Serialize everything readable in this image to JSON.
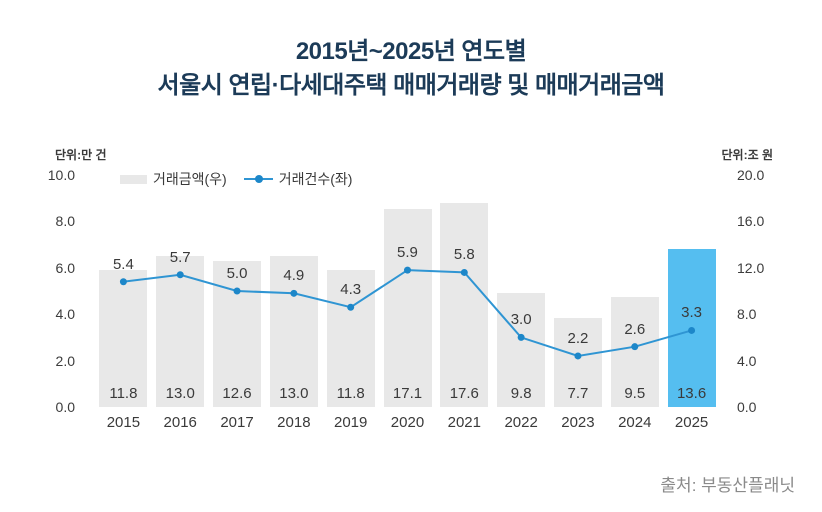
{
  "title": {
    "line1": "2015년~2025년 연도별",
    "line2": "서울시 연립·다세대주택 매매거래량 및 매매거래금액"
  },
  "units": {
    "left": "단위:만 건",
    "right": "단위:조 원"
  },
  "legend": [
    {
      "label": "거래금액(우)",
      "marker": "bar-swatch"
    },
    {
      "label": "거래건수(좌)",
      "marker": "line-marker"
    }
  ],
  "source": "출처: 부동산플래닛",
  "chart_data": {
    "type": "bar+line combo",
    "categories": [
      "2015",
      "2016",
      "2017",
      "2018",
      "2019",
      "2020",
      "2021",
      "2022",
      "2023",
      "2024",
      "2025"
    ],
    "series": [
      {
        "name": "거래금액(우)",
        "type": "bar",
        "axis": "right",
        "values": [
          11.8,
          13.0,
          12.6,
          13.0,
          11.8,
          17.1,
          17.6,
          9.8,
          7.7,
          9.5,
          13.6
        ]
      },
      {
        "name": "거래건수(좌)",
        "type": "line",
        "axis": "left",
        "values": [
          5.4,
          5.7,
          5.0,
          4.9,
          4.3,
          5.9,
          5.8,
          3.0,
          2.2,
          2.6,
          3.3
        ]
      }
    ],
    "left_axis": {
      "label": "단위:만 건",
      "ticks": [
        "10.0",
        "8.0",
        "6.0",
        "4.0",
        "2.0",
        "0.0"
      ],
      "range": [
        0,
        10
      ]
    },
    "right_axis": {
      "label": "단위:조 원",
      "ticks": [
        "20.0",
        "16.0",
        "12.0",
        "8.0",
        "4.0",
        "0.0"
      ],
      "range": [
        0,
        20
      ]
    },
    "highlight_index": 10,
    "grid": false,
    "legend_position": "top-left",
    "colors": {
      "title": "#1c3b58",
      "bar": "#e8e8e8",
      "bar_highlight": "#55bef0",
      "line": "#2f95d3",
      "marker": "#1d87c9"
    }
  }
}
